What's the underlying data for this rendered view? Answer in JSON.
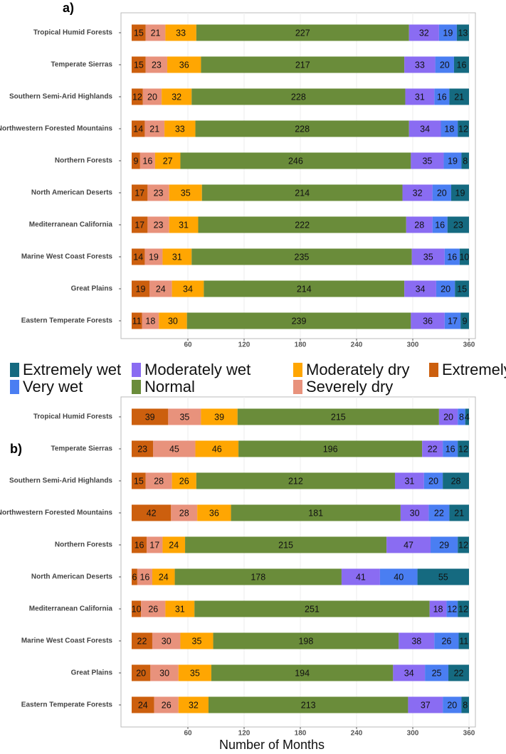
{
  "chart_data": [
    {
      "type": "stacked-bar-horizontal",
      "title": "a)",
      "categories": [
        "Tropical Humid Forests",
        "Temperate Sierras",
        "Southern Semi-Arid Highlands",
        "Northwestern Forested Mountains",
        "Northern Forests",
        "North American Deserts",
        "Mediterranean California",
        "Marine West Coast Forests",
        "Great Plains",
        "Eastern Temperate Forests"
      ],
      "series": [
        {
          "name": "Extremely dry",
          "color": "#cc5f0e",
          "values": [
            15,
            15,
            12,
            14,
            9,
            17,
            17,
            14,
            19,
            11
          ]
        },
        {
          "name": "Severely dry",
          "color": "#e8927c",
          "values": [
            21,
            23,
            20,
            21,
            16,
            23,
            23,
            19,
            24,
            18
          ]
        },
        {
          "name": "Moderately dry",
          "color": "#ffa602",
          "values": [
            33,
            36,
            32,
            33,
            27,
            35,
            31,
            31,
            34,
            30
          ]
        },
        {
          "name": "Normal",
          "color": "#6a8c3a",
          "values": [
            227,
            217,
            228,
            228,
            246,
            214,
            222,
            235,
            214,
            239
          ]
        },
        {
          "name": "Moderately wet",
          "color": "#8a6cf2",
          "values": [
            32,
            33,
            31,
            34,
            35,
            32,
            28,
            35,
            34,
            36
          ]
        },
        {
          "name": "Very wet",
          "color": "#4a7ef2",
          "values": [
            19,
            20,
            16,
            18,
            19,
            20,
            16,
            16,
            20,
            17
          ]
        },
        {
          "name": "Extremely wet",
          "color": "#156a80",
          "values": [
            13,
            16,
            21,
            12,
            8,
            19,
            23,
            10,
            15,
            9
          ]
        }
      ],
      "xlim": [
        0,
        360
      ],
      "xticks": [
        60,
        120,
        180,
        240,
        300,
        360
      ],
      "grid": true
    },
    {
      "type": "stacked-bar-horizontal",
      "title": "b)",
      "x_label": "Number of Months",
      "categories": [
        "Tropical Humid Forests",
        "Temperate Sierras",
        "Southern Semi-Arid Highlands",
        "Northwestern Forested Mountains",
        "Northern Forests",
        "North American Deserts",
        "Mediterranean California",
        "Marine West Coast Forests",
        "Great Plains",
        "Eastern Temperate Forests"
      ],
      "series": [
        {
          "name": "Extremely dry",
          "color": "#cc5f0e",
          "values": [
            39,
            23,
            15,
            42,
            16,
            6,
            10,
            22,
            20,
            24
          ]
        },
        {
          "name": "Severely dry",
          "color": "#e8927c",
          "values": [
            35,
            45,
            28,
            28,
            17,
            16,
            26,
            30,
            30,
            26
          ]
        },
        {
          "name": "Moderately dry",
          "color": "#ffa602",
          "values": [
            39,
            46,
            26,
            36,
            24,
            24,
            31,
            35,
            35,
            32
          ]
        },
        {
          "name": "Normal",
          "color": "#6a8c3a",
          "values": [
            215,
            196,
            212,
            181,
            215,
            178,
            251,
            198,
            194,
            213
          ]
        },
        {
          "name": "Moderately wet",
          "color": "#8a6cf2",
          "values": [
            20,
            22,
            31,
            30,
            47,
            41,
            18,
            38,
            34,
            37
          ]
        },
        {
          "name": "Very wet",
          "color": "#4a7ef2",
          "values": [
            8,
            16,
            20,
            22,
            29,
            40,
            12,
            26,
            25,
            20
          ]
        },
        {
          "name": "Extremely wet",
          "color": "#156a80",
          "values": [
            4,
            12,
            28,
            21,
            12,
            55,
            12,
            11,
            22,
            8
          ]
        }
      ],
      "xlim": [
        0,
        360
      ],
      "xticks": [
        60,
        120,
        180,
        240,
        300,
        360
      ],
      "grid": true
    }
  ]
}
